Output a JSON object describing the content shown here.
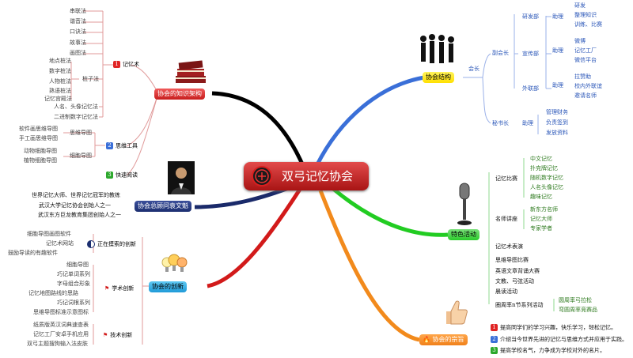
{
  "center": {
    "title": "双弓记忆协会"
  },
  "branches": {
    "knowledge": {
      "label": "协会的知识架构"
    },
    "consultant": {
      "label": "协会总顾问袁文魁"
    },
    "innovation": {
      "label": "协会的创新"
    },
    "structure": {
      "label": "协会结构"
    },
    "activities": {
      "label": "特色活动"
    },
    "purpose": {
      "label": "协会的宗旨"
    }
  },
  "knowledge": {
    "memory_method": {
      "label": "记忆术",
      "num": "1"
    },
    "methods_top": [
      "串联法",
      "谐音法",
      "口诀法",
      "故事法",
      "画图法"
    ],
    "pile": {
      "label": "桩子法",
      "items": [
        "地点桩法",
        "数字桩法",
        "人物桩法",
        "熟语桩法",
        "记忆宫殿法"
      ]
    },
    "methods_bottom": [
      "人名、头像记忆法",
      "二进制数字记忆法"
    ],
    "thinking_tool": {
      "label": "思维工具",
      "num": "2"
    },
    "mindmap": {
      "label": "思维导图",
      "items": [
        "软件画思维导图",
        "手工画思维导图"
      ]
    },
    "detailmap": {
      "label": "细胞导图",
      "items": [
        "动物细胞导图",
        "植物细胞导图"
      ]
    },
    "speed_read": {
      "label": "快速阅读",
      "num": "3"
    }
  },
  "consultant": [
    "世界记忆大师、世界记忆冠军的教练",
    "武汉大学记忆协会创始人之一",
    "武汉东方巨龙教育集团创始人之一"
  ],
  "innovation": {
    "searching": {
      "label": "正在摸索的创新",
      "items": [
        "细胞导图画图软件",
        "记忆术网站",
        "鼓励导读的有趣软件"
      ]
    },
    "academic": {
      "label": "学术创新",
      "items": [
        "细胞导图",
        "巧记单词系列",
        "字母组合形象",
        "记忆地图路线的思路",
        "巧记词根系列",
        "思维导图标准示意图标"
      ]
    },
    "tech": {
      "label": "技术创新",
      "items": [
        "纸质版英汉词典速查表",
        "记忆工厂安卓手机应用",
        "双弓主题搜狗输入法皮肤"
      ]
    }
  },
  "structure": {
    "president": "会长",
    "vice": "副会长",
    "secretary": "秘书长",
    "research": {
      "label": "研发部",
      "assistant": "助理",
      "items": [
        "研发",
        "整理知识",
        "训练、比赛"
      ]
    },
    "publicity": {
      "label": "宣传部",
      "assistant": "助理",
      "items": [
        "微博",
        "记忆工厂",
        "微信平台"
      ]
    },
    "external": {
      "label": "外联部",
      "assistant": "助理",
      "items": [
        "拉赞助",
        "校内外联谊",
        "邀请名师"
      ]
    },
    "secretary_sub": {
      "assistant": "助理",
      "items": [
        "管理财务",
        "负责签到",
        "发放资料"
      ]
    }
  },
  "activities": {
    "competition": {
      "label": "记忆比赛",
      "items": [
        "中文记忆",
        "扑克牌记忆",
        "随机数字记忆",
        "人名头像记忆",
        "趣味记忆"
      ]
    },
    "lecture": {
      "label": "名师讲座",
      "items": [
        "新东方名师",
        "记忆大师",
        "专家学者"
      ]
    },
    "show": "记忆术表演",
    "others": [
      "思维导图比赛",
      "英语文章背诵大赛",
      "文教、弓弦活动",
      "晨读活动"
    ],
    "weekly": {
      "label": "圈周率n节系列活动",
      "items": [
        "圆周率弓拉松",
        "弯圆周率竞赛品"
      ]
    }
  },
  "purpose": [
    {
      "num": "1",
      "text": "提高同学们的学习兴趣，快乐学习，轻松记忆。"
    },
    {
      "num": "2",
      "text": "介绍当今世界先进的记忆与思维方式并应用于实践。"
    },
    {
      "num": "3",
      "text": "提高学校名气，力争成为学校对外的名片。"
    }
  ],
  "colors": {
    "red": "#e02424",
    "blue": "#3a6fd8",
    "green": "#2ccc2c",
    "yellow": "#ffea00",
    "orange": "#f08a1c",
    "navy": "#1c2f70"
  }
}
